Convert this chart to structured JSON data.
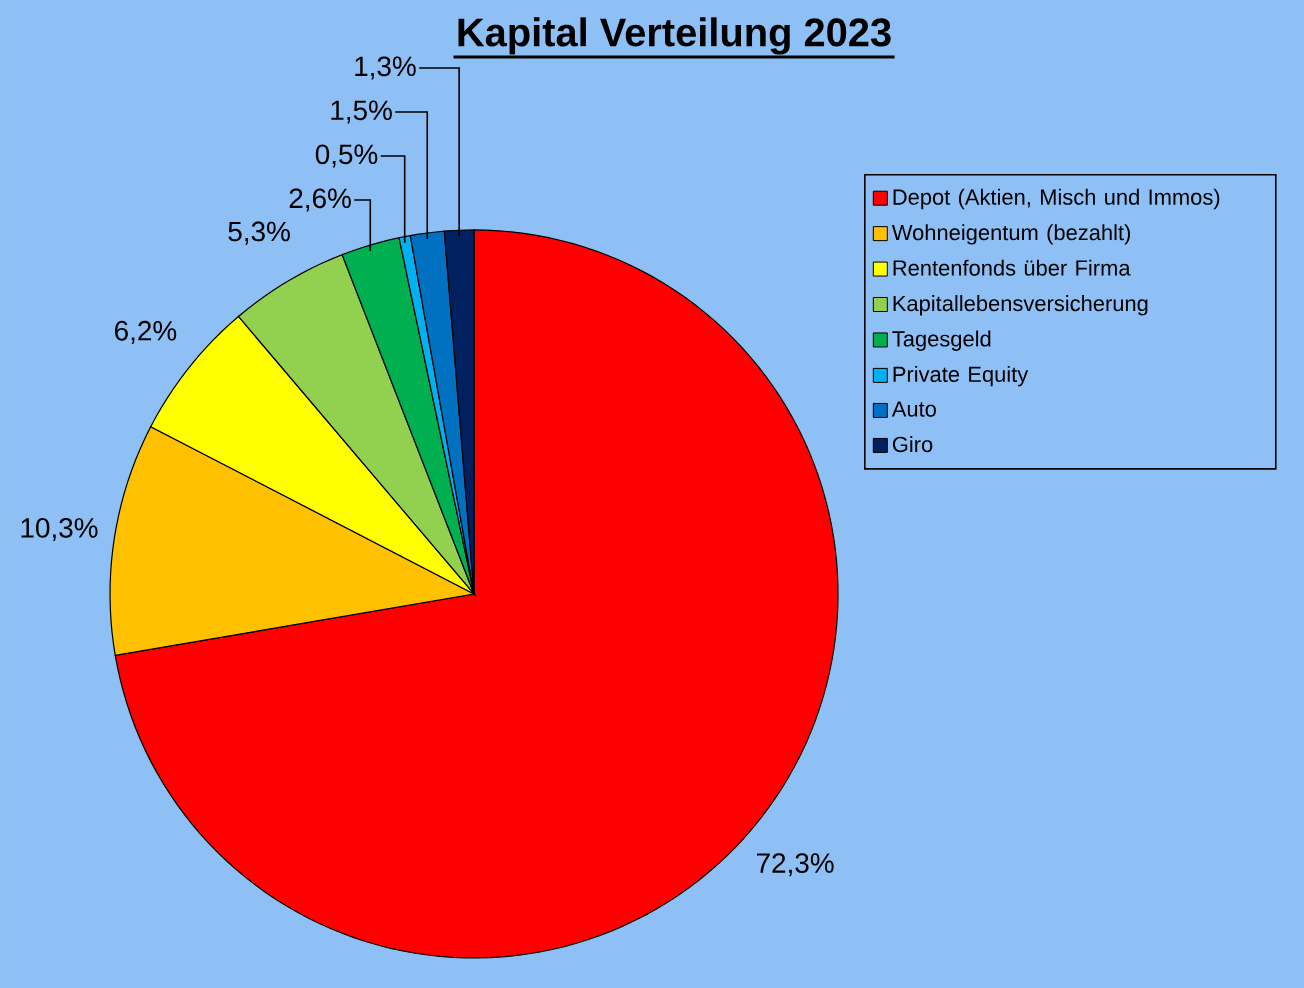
{
  "chart_data": {
    "type": "pie",
    "title": "Kapital Verteilung 2023",
    "categories": [
      "Depot (Aktien, Misch und Immos)",
      "Wohneigentum (bezahlt)",
      "Rentenfonds über Firma",
      "Kapitallebensversicherung",
      "Tagesgeld",
      "Private Equity",
      "Auto",
      "Giro"
    ],
    "values": [
      72.3,
      10.3,
      6.2,
      5.3,
      2.6,
      0.5,
      1.5,
      1.3
    ],
    "colors": [
      "#ff0000",
      "#ffc000",
      "#ffff00",
      "#92d050",
      "#00b050",
      "#00b0f0",
      "#0070c0",
      "#002060"
    ],
    "value_labels": [
      "72,3%",
      "10,3%",
      "6,2%",
      "5,3%",
      "2,6%",
      "0,5%",
      "1,5%",
      "1,3%"
    ],
    "legend": "right"
  }
}
